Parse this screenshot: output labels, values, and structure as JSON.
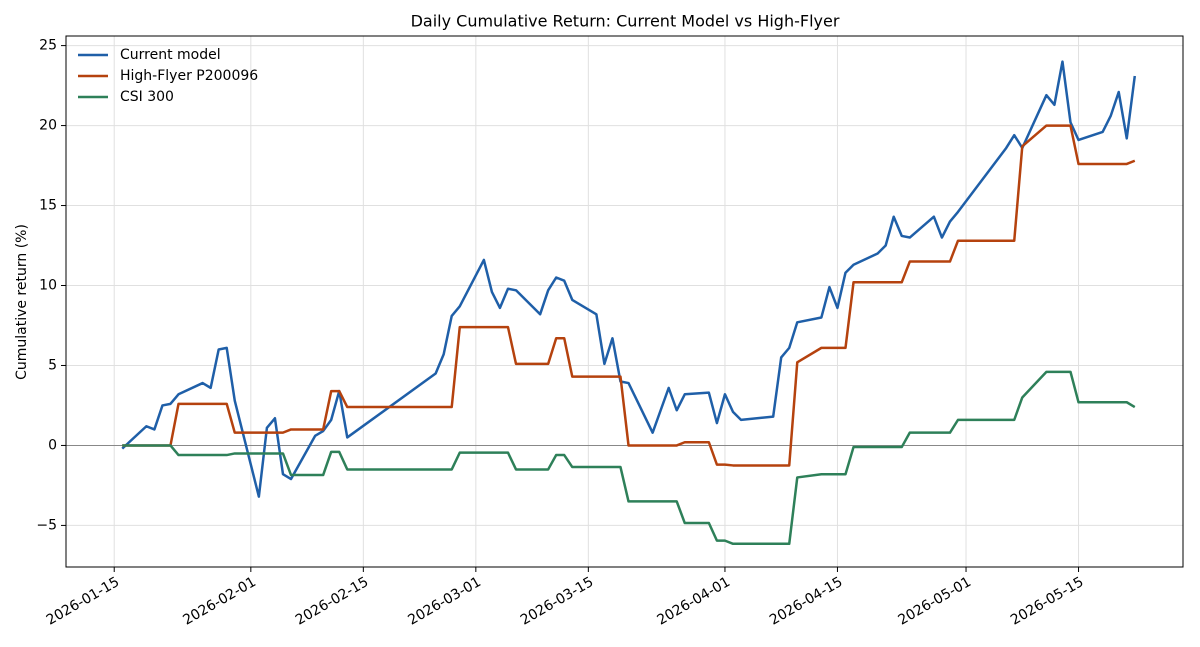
{
  "chart_data": {
    "type": "line",
    "title": "Daily Cumulative Return: Current Model vs High-Flyer",
    "y_label": "Cumulative return (%)",
    "x": [
      "2026-01-16",
      "2026-01-19",
      "2026-01-20",
      "2026-01-21",
      "2026-01-22",
      "2026-01-23",
      "2026-01-26",
      "2026-01-27",
      "2026-01-28",
      "2026-01-29",
      "2026-01-30",
      "2026-02-02",
      "2026-02-03",
      "2026-02-04",
      "2026-02-05",
      "2026-02-06",
      "2026-02-09",
      "2026-02-10",
      "2026-02-11",
      "2026-02-12",
      "2026-02-13",
      "2026-02-24",
      "2026-02-25",
      "2026-02-26",
      "2026-02-27",
      "2026-03-02",
      "2026-03-03",
      "2026-03-04",
      "2026-03-05",
      "2026-03-06",
      "2026-03-09",
      "2026-03-10",
      "2026-03-11",
      "2026-03-12",
      "2026-03-13",
      "2026-03-16",
      "2026-03-17",
      "2026-03-18",
      "2026-03-19",
      "2026-03-20",
      "2026-03-23",
      "2026-03-24",
      "2026-03-25",
      "2026-03-26",
      "2026-03-27",
      "2026-03-30",
      "2026-03-31",
      "2026-04-01",
      "2026-04-02",
      "2026-04-03",
      "2026-04-07",
      "2026-04-08",
      "2026-04-09",
      "2026-04-10",
      "2026-04-13",
      "2026-04-14",
      "2026-04-15",
      "2026-04-16",
      "2026-04-17",
      "2026-04-20",
      "2026-04-21",
      "2026-04-22",
      "2026-04-23",
      "2026-04-24",
      "2026-04-27",
      "2026-04-28",
      "2026-04-29",
      "2026-04-30",
      "2026-05-06",
      "2026-05-07",
      "2026-05-08",
      "2026-05-11",
      "2026-05-12",
      "2026-05-13",
      "2026-05-14",
      "2026-05-15",
      "2026-05-18",
      "2026-05-19",
      "2026-05-20",
      "2026-05-21",
      "2026-05-22"
    ],
    "series": [
      {
        "name": "Current model",
        "color": "#1f5fa8",
        "values": [
          -0.2,
          1.2,
          1.0,
          2.5,
          2.6,
          3.2,
          3.9,
          3.6,
          6.0,
          6.1,
          2.8,
          -3.2,
          1.1,
          1.7,
          -1.8,
          -2.1,
          0.6,
          0.9,
          1.6,
          3.4,
          0.5,
          4.5,
          5.7,
          8.1,
          8.7,
          11.6,
          9.6,
          8.6,
          9.8,
          9.7,
          8.2,
          9.7,
          10.5,
          10.3,
          9.1,
          8.2,
          5.1,
          6.7,
          4.0,
          3.9,
          0.8,
          2.2,
          3.6,
          2.2,
          3.2,
          3.3,
          1.4,
          3.2,
          2.1,
          1.6,
          1.8,
          5.5,
          6.1,
          7.7,
          8.0,
          9.9,
          8.6,
          10.8,
          11.3,
          12.0,
          12.5,
          14.3,
          13.1,
          13.0,
          14.3,
          13.0,
          14.0,
          14.6,
          18.6,
          19.4,
          18.6,
          21.9,
          21.3,
          24.0,
          20.2,
          19.1,
          19.6,
          20.6,
          22.1,
          19.2,
          23.1
        ]
      },
      {
        "name": "High-Flyer P200096",
        "color": "#b5420e",
        "values": [
          0,
          0,
          0,
          0,
          0,
          2.6,
          2.6,
          2.6,
          2.6,
          2.6,
          0.8,
          0.8,
          0.8,
          0.8,
          0.8,
          1.0,
          1.0,
          1.0,
          3.4,
          3.4,
          2.4,
          2.4,
          2.4,
          2.4,
          7.4,
          7.4,
          7.4,
          7.4,
          7.4,
          5.1,
          5.1,
          5.1,
          6.7,
          6.7,
          4.3,
          4.3,
          4.3,
          4.3,
          4.3,
          0,
          0,
          0,
          0,
          0,
          0.2,
          0.2,
          -1.2,
          -1.2,
          -1.25,
          -1.25,
          -1.25,
          -1.25,
          -1.25,
          5.2,
          6.1,
          6.1,
          6.1,
          6.1,
          10.2,
          10.2,
          10.2,
          10.2,
          10.2,
          11.5,
          11.5,
          11.5,
          11.5,
          12.8,
          12.8,
          12.8,
          18.7,
          20,
          20,
          20,
          20,
          17.6,
          17.6,
          17.6,
          17.6,
          17.6,
          17.8
        ]
      },
      {
        "name": "CSI 300",
        "color": "#2e8059",
        "values": [
          0,
          0,
          0,
          0,
          0,
          -0.6,
          -0.6,
          -0.6,
          -0.6,
          -0.6,
          -0.5,
          -0.5,
          -0.5,
          -0.5,
          -0.5,
          -1.85,
          -1.85,
          -1.85,
          -0.4,
          -0.4,
          -1.5,
          -1.5,
          -1.5,
          -1.5,
          -0.45,
          -0.45,
          -0.45,
          -0.45,
          -0.45,
          -1.5,
          -1.5,
          -1.5,
          -0.6,
          -0.6,
          -1.35,
          -1.35,
          -1.35,
          -1.35,
          -1.35,
          -3.5,
          -3.5,
          -3.5,
          -3.5,
          -3.5,
          -4.85,
          -4.85,
          -5.95,
          -5.95,
          -6.15,
          -6.15,
          -6.15,
          -6.15,
          -6.15,
          -2.0,
          -1.8,
          -1.8,
          -1.8,
          -1.8,
          -0.1,
          -0.1,
          -0.1,
          -0.1,
          -0.1,
          0.8,
          0.8,
          0.8,
          0.8,
          1.6,
          1.6,
          1.6,
          3.0,
          4.6,
          4.6,
          4.6,
          4.6,
          2.7,
          2.7,
          2.7,
          2.7,
          2.7,
          2.4
        ]
      }
    ],
    "xlim": [
      "2026-01-09",
      "2026-05-28"
    ],
    "xticks": [
      "2026-01-15",
      "2026-02-01",
      "2026-02-15",
      "2026-03-01",
      "2026-03-15",
      "2026-04-01",
      "2026-04-15",
      "2026-05-01",
      "2026-05-15"
    ],
    "ylim": [
      -7.6,
      25.6
    ],
    "yticks": [
      {
        "value": -5,
        "label": "−5"
      },
      0,
      5,
      10,
      15,
      20,
      25
    ],
    "hline": 0,
    "grid": true,
    "legend": "upper left"
  }
}
